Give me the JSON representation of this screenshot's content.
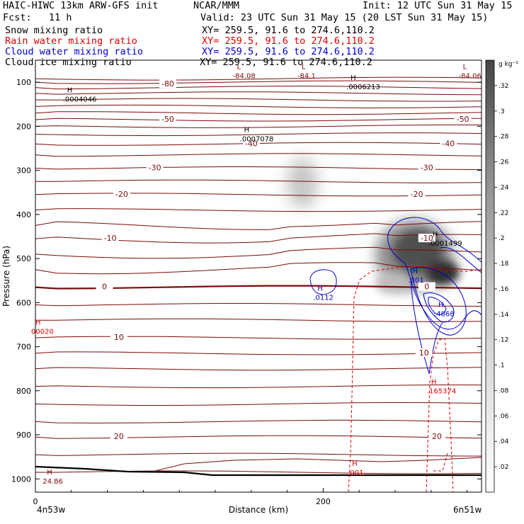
{
  "header": {
    "title": "HAIC-HIWC 13km ARW-GFS init",
    "org": "NCAR/MMM",
    "init": "Init: 12 UTC Sun 31 May 15",
    "fcst": "Fcst:   11 h",
    "valid": "Valid: 23 UTC Sun 31 May 15 (20 LST Sun 31 May 15)",
    "fields": [
      {
        "name": "Snow mixing ratio",
        "xy": "XY= 259.5, 91.6 to 274.6,110.2",
        "color": "#000000"
      },
      {
        "name": "Rain water mixing ratio",
        "xy": "XY= 259.5, 91.6 to 274.6,110.2",
        "color": "#e00000"
      },
      {
        "name": "Cloud water mixing ratio",
        "xy": "XY= 259.5, 91.6 to 274.6,110.2",
        "color": "#0000cc"
      },
      {
        "name": "Cloud ice mixing ratio",
        "xy": "XY= 259.5, 91.6 to 274.6,110.2",
        "color": "#000000"
      }
    ]
  },
  "chart_data": {
    "type": "cross-section",
    "xlabel": "Distance (km)",
    "ylabel": "Pressure (hPa)",
    "x_ticks": [
      0,
      200
    ],
    "y_ticks": [
      100,
      200,
      300,
      400,
      500,
      600,
      700,
      800,
      900,
      1000
    ],
    "xlim": [
      0,
      310
    ],
    "ylim": [
      1030,
      50
    ],
    "x_left_label": "4n53w",
    "x_right_label": "6n51w",
    "colorbar": {
      "unit": "g kg⁻¹",
      "labels": [
        ".02",
        ".04",
        ".06",
        ".08",
        ".1",
        ".12",
        ".14",
        ".16",
        ".18",
        ".2",
        ".22",
        ".24",
        ".26",
        ".28",
        ".3",
        ".32"
      ],
      "range": [
        0,
        0.34
      ]
    },
    "temperature_contours": {
      "color": "#7a0a0a",
      "labels": [
        {
          "text": "-80",
          "x": 92,
          "p": 105
        },
        {
          "text": "-50",
          "x": 92,
          "p": 185
        },
        {
          "text": "-50",
          "x": 297,
          "p": 185
        },
        {
          "text": "-40",
          "x": 150,
          "p": 240
        },
        {
          "text": "-40",
          "x": 287,
          "p": 240
        },
        {
          "text": "-30",
          "x": 83,
          "p": 295
        },
        {
          "text": "-30",
          "x": 272,
          "p": 295
        },
        {
          "text": "-20",
          "x": 60,
          "p": 355
        },
        {
          "text": "-20",
          "x": 265,
          "p": 355
        },
        {
          "text": "-10",
          "x": 52,
          "p": 455
        },
        {
          "text": "-10",
          "x": 272,
          "p": 455
        },
        {
          "text": "0",
          "x": 48,
          "p": 565
        },
        {
          "text": "0",
          "x": 272,
          "p": 565
        },
        {
          "text": "10",
          "x": 58,
          "p": 680
        },
        {
          "text": "10",
          "x": 270,
          "p": 715
        },
        {
          "text": "20",
          "x": 58,
          "p": 905
        },
        {
          "text": "20",
          "x": 279,
          "p": 905
        }
      ]
    },
    "extrema": [
      {
        "mark": "L",
        "value": "-84.08",
        "x": 140,
        "p": 75,
        "color": "#7a0a0a"
      },
      {
        "mark": "L",
        "value": "-84.1",
        "x": 185,
        "p": 75,
        "color": "#7a0a0a"
      },
      {
        "mark": "L",
        "value": "-84.06",
        "x": 297,
        "p": 75,
        "color": "#7a0a0a"
      },
      {
        "mark": "H",
        "value": ".0006213",
        "x": 219,
        "p": 100,
        "color": "#000000"
      },
      {
        "mark": "H",
        "value": ".0004046",
        "x": 22,
        "p": 128,
        "color": "#000000"
      },
      {
        "mark": "H",
        "value": ".0007078",
        "x": 145,
        "p": 218,
        "color": "#000000"
      },
      {
        "mark": "H",
        "value": ".0001499",
        "x": 276,
        "p": 455,
        "color": "#000000"
      },
      {
        "mark": "H",
        "value": ".001",
        "x": 262,
        "p": 538,
        "color": "#0000cc"
      },
      {
        "mark": "H",
        "value": ".0112",
        "x": 196,
        "p": 578,
        "color": "#0000cc"
      },
      {
        "mark": "H",
        "value": ".4868",
        "x": 280,
        "p": 615,
        "color": "#0000cc"
      },
      {
        "mark": "H",
        "value": "00020",
        "x": 0,
        "p": 655,
        "color": "#e00000"
      },
      {
        "mark": "H",
        "value": ".165374",
        "x": 275,
        "p": 790,
        "color": "#e00000"
      },
      {
        "mark": "H",
        "value": ".001",
        "x": 220,
        "p": 975,
        "color": "#e00000"
      },
      {
        "mark": "H",
        "value": "24.86",
        "x": 8,
        "p": 995,
        "color": "#7a0a0a"
      }
    ]
  }
}
